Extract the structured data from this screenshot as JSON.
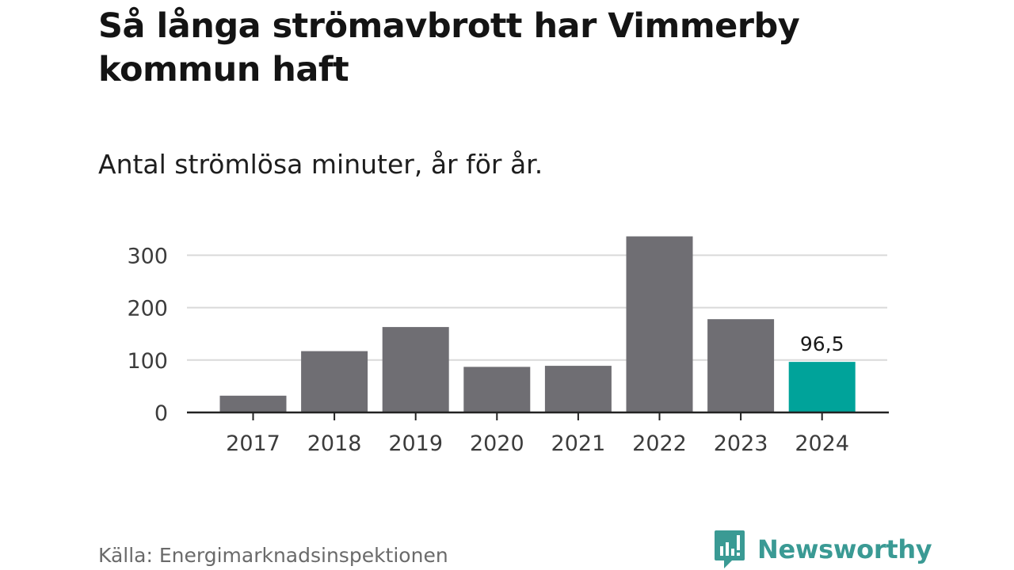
{
  "header": {
    "title": "Så långa strömavbrott har Vimmerby kommun haft",
    "subtitle": "Antal strömlösa minuter, år för år."
  },
  "chart_data": {
    "type": "bar",
    "title": "Så långa strömavbrott har Vimmerby kommun haft",
    "subtitle": "Antal strömlösa minuter, år för år.",
    "xlabel": "",
    "ylabel": "",
    "categories": [
      "2017",
      "2018",
      "2019",
      "2020",
      "2021",
      "2022",
      "2023",
      "2024"
    ],
    "values": [
      32,
      117,
      163,
      87,
      89,
      336,
      178,
      96.5
    ],
    "highlight_index": 7,
    "data_labels": [
      {
        "index": 7,
        "text": "96,5"
      }
    ],
    "ylim": [
      0,
      340
    ],
    "yticks": [
      0,
      100,
      200,
      300
    ],
    "grid": true,
    "colors": {
      "bar": "#6f6e73",
      "highlight": "#00a39a",
      "grid": "#d9d9d9",
      "axis": "#222222"
    }
  },
  "footer": {
    "source": "Källa: Energimarknadsinspektionen",
    "brand": "Newsworthy",
    "brand_icon": "newsworthy-chart-bubble-icon",
    "brand_color": "#3a9a94"
  }
}
